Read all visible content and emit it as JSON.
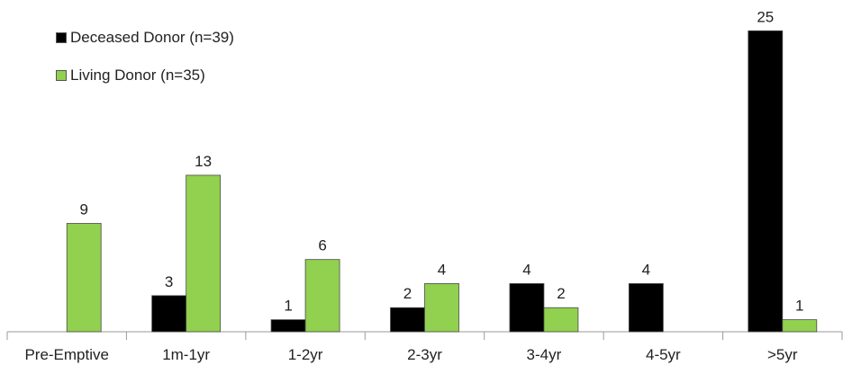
{
  "chart_data": {
    "type": "bar",
    "categories": [
      "Pre-Emptive",
      "1m-1yr",
      "1-2yr",
      "2-3yr",
      "3-4yr",
      "4-5yr",
      ">5yr"
    ],
    "series": [
      {
        "name": "Deceased Donor (n=39)",
        "color": "#000000",
        "values": [
          null,
          3,
          1,
          2,
          4,
          4,
          25
        ]
      },
      {
        "name": "Living Donor (n=35)",
        "color": "#92d050",
        "values": [
          9,
          13,
          6,
          4,
          2,
          null,
          1
        ]
      }
    ],
    "ylim": [
      0,
      25
    ],
    "grid": false,
    "legend_position": "top-left",
    "data_labels": true
  }
}
